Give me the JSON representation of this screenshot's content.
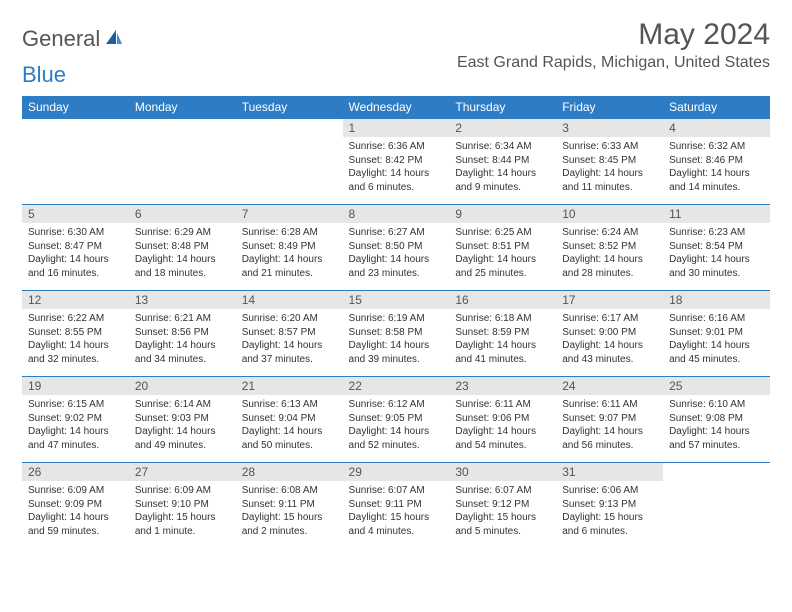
{
  "logo": {
    "text1": "General",
    "text2": "Blue"
  },
  "title": "May 2024",
  "location": "East Grand Rapids, Michigan, United States",
  "weekdays": [
    "Sunday",
    "Monday",
    "Tuesday",
    "Wednesday",
    "Thursday",
    "Friday",
    "Saturday"
  ],
  "colors": {
    "header_bg": "#2e7cc4",
    "header_text": "#ffffff",
    "daynum_bg": "#e6e6e6",
    "brand_blue": "#2e7cc4",
    "text": "#333333"
  },
  "weeks": [
    [
      {
        "n": "",
        "lines": []
      },
      {
        "n": "",
        "lines": []
      },
      {
        "n": "",
        "lines": []
      },
      {
        "n": "1",
        "lines": [
          "Sunrise: 6:36 AM",
          "Sunset: 8:42 PM",
          "Daylight: 14 hours",
          "and 6 minutes."
        ]
      },
      {
        "n": "2",
        "lines": [
          "Sunrise: 6:34 AM",
          "Sunset: 8:44 PM",
          "Daylight: 14 hours",
          "and 9 minutes."
        ]
      },
      {
        "n": "3",
        "lines": [
          "Sunrise: 6:33 AM",
          "Sunset: 8:45 PM",
          "Daylight: 14 hours",
          "and 11 minutes."
        ]
      },
      {
        "n": "4",
        "lines": [
          "Sunrise: 6:32 AM",
          "Sunset: 8:46 PM",
          "Daylight: 14 hours",
          "and 14 minutes."
        ]
      }
    ],
    [
      {
        "n": "5",
        "lines": [
          "Sunrise: 6:30 AM",
          "Sunset: 8:47 PM",
          "Daylight: 14 hours",
          "and 16 minutes."
        ]
      },
      {
        "n": "6",
        "lines": [
          "Sunrise: 6:29 AM",
          "Sunset: 8:48 PM",
          "Daylight: 14 hours",
          "and 18 minutes."
        ]
      },
      {
        "n": "7",
        "lines": [
          "Sunrise: 6:28 AM",
          "Sunset: 8:49 PM",
          "Daylight: 14 hours",
          "and 21 minutes."
        ]
      },
      {
        "n": "8",
        "lines": [
          "Sunrise: 6:27 AM",
          "Sunset: 8:50 PM",
          "Daylight: 14 hours",
          "and 23 minutes."
        ]
      },
      {
        "n": "9",
        "lines": [
          "Sunrise: 6:25 AM",
          "Sunset: 8:51 PM",
          "Daylight: 14 hours",
          "and 25 minutes."
        ]
      },
      {
        "n": "10",
        "lines": [
          "Sunrise: 6:24 AM",
          "Sunset: 8:52 PM",
          "Daylight: 14 hours",
          "and 28 minutes."
        ]
      },
      {
        "n": "11",
        "lines": [
          "Sunrise: 6:23 AM",
          "Sunset: 8:54 PM",
          "Daylight: 14 hours",
          "and 30 minutes."
        ]
      }
    ],
    [
      {
        "n": "12",
        "lines": [
          "Sunrise: 6:22 AM",
          "Sunset: 8:55 PM",
          "Daylight: 14 hours",
          "and 32 minutes."
        ]
      },
      {
        "n": "13",
        "lines": [
          "Sunrise: 6:21 AM",
          "Sunset: 8:56 PM",
          "Daylight: 14 hours",
          "and 34 minutes."
        ]
      },
      {
        "n": "14",
        "lines": [
          "Sunrise: 6:20 AM",
          "Sunset: 8:57 PM",
          "Daylight: 14 hours",
          "and 37 minutes."
        ]
      },
      {
        "n": "15",
        "lines": [
          "Sunrise: 6:19 AM",
          "Sunset: 8:58 PM",
          "Daylight: 14 hours",
          "and 39 minutes."
        ]
      },
      {
        "n": "16",
        "lines": [
          "Sunrise: 6:18 AM",
          "Sunset: 8:59 PM",
          "Daylight: 14 hours",
          "and 41 minutes."
        ]
      },
      {
        "n": "17",
        "lines": [
          "Sunrise: 6:17 AM",
          "Sunset: 9:00 PM",
          "Daylight: 14 hours",
          "and 43 minutes."
        ]
      },
      {
        "n": "18",
        "lines": [
          "Sunrise: 6:16 AM",
          "Sunset: 9:01 PM",
          "Daylight: 14 hours",
          "and 45 minutes."
        ]
      }
    ],
    [
      {
        "n": "19",
        "lines": [
          "Sunrise: 6:15 AM",
          "Sunset: 9:02 PM",
          "Daylight: 14 hours",
          "and 47 minutes."
        ]
      },
      {
        "n": "20",
        "lines": [
          "Sunrise: 6:14 AM",
          "Sunset: 9:03 PM",
          "Daylight: 14 hours",
          "and 49 minutes."
        ]
      },
      {
        "n": "21",
        "lines": [
          "Sunrise: 6:13 AM",
          "Sunset: 9:04 PM",
          "Daylight: 14 hours",
          "and 50 minutes."
        ]
      },
      {
        "n": "22",
        "lines": [
          "Sunrise: 6:12 AM",
          "Sunset: 9:05 PM",
          "Daylight: 14 hours",
          "and 52 minutes."
        ]
      },
      {
        "n": "23",
        "lines": [
          "Sunrise: 6:11 AM",
          "Sunset: 9:06 PM",
          "Daylight: 14 hours",
          "and 54 minutes."
        ]
      },
      {
        "n": "24",
        "lines": [
          "Sunrise: 6:11 AM",
          "Sunset: 9:07 PM",
          "Daylight: 14 hours",
          "and 56 minutes."
        ]
      },
      {
        "n": "25",
        "lines": [
          "Sunrise: 6:10 AM",
          "Sunset: 9:08 PM",
          "Daylight: 14 hours",
          "and 57 minutes."
        ]
      }
    ],
    [
      {
        "n": "26",
        "lines": [
          "Sunrise: 6:09 AM",
          "Sunset: 9:09 PM",
          "Daylight: 14 hours",
          "and 59 minutes."
        ]
      },
      {
        "n": "27",
        "lines": [
          "Sunrise: 6:09 AM",
          "Sunset: 9:10 PM",
          "Daylight: 15 hours",
          "and 1 minute."
        ]
      },
      {
        "n": "28",
        "lines": [
          "Sunrise: 6:08 AM",
          "Sunset: 9:11 PM",
          "Daylight: 15 hours",
          "and 2 minutes."
        ]
      },
      {
        "n": "29",
        "lines": [
          "Sunrise: 6:07 AM",
          "Sunset: 9:11 PM",
          "Daylight: 15 hours",
          "and 4 minutes."
        ]
      },
      {
        "n": "30",
        "lines": [
          "Sunrise: 6:07 AM",
          "Sunset: 9:12 PM",
          "Daylight: 15 hours",
          "and 5 minutes."
        ]
      },
      {
        "n": "31",
        "lines": [
          "Sunrise: 6:06 AM",
          "Sunset: 9:13 PM",
          "Daylight: 15 hours",
          "and 6 minutes."
        ]
      },
      {
        "n": "",
        "lines": []
      }
    ]
  ]
}
